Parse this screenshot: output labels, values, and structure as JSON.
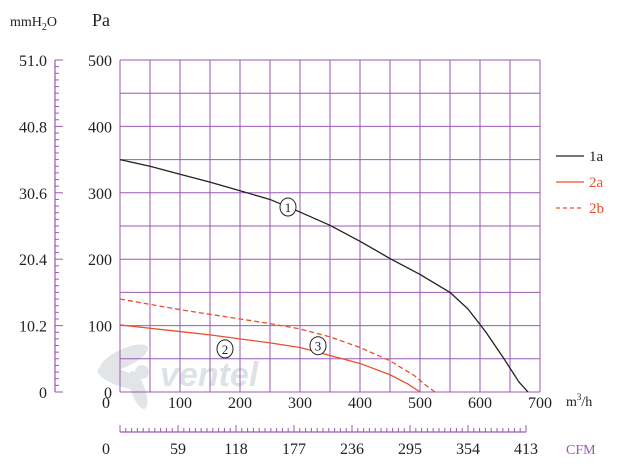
{
  "chart_data": {
    "type": "line",
    "units": {
      "left_outer": "mmH2O",
      "left_inner": "Pa",
      "bottom_flow": "m³/h",
      "bottom_cfm": "CFM"
    },
    "y_pa": {
      "range": [
        0,
        500
      ],
      "ticks": [
        "0",
        "100",
        "200",
        "300",
        "400",
        "500"
      ]
    },
    "y_mmh2o": {
      "range": [
        0,
        51.0
      ],
      "ticks": [
        "0",
        "10.2",
        "20.4",
        "30.6",
        "40.8",
        "51.0"
      ]
    },
    "x_m3h": {
      "range": [
        0,
        700
      ],
      "ticks": [
        "0",
        "100",
        "200",
        "300",
        "400",
        "500",
        "600",
        "700"
      ]
    },
    "x_cfm": {
      "range": [
        0,
        413
      ],
      "ticks": [
        "0",
        "59",
        "118",
        "177",
        "236",
        "295",
        "354",
        "413"
      ]
    },
    "grid": true,
    "legend_position": "right",
    "series": [
      {
        "name": "1a",
        "marker": "1",
        "color": "#222222",
        "dash": "solid",
        "points": [
          [
            0,
            350
          ],
          [
            50,
            340
          ],
          [
            100,
            328
          ],
          [
            150,
            316
          ],
          [
            200,
            303
          ],
          [
            250,
            290
          ],
          [
            300,
            271
          ],
          [
            350,
            251
          ],
          [
            400,
            227
          ],
          [
            450,
            201
          ],
          [
            500,
            177
          ],
          [
            550,
            150
          ],
          [
            580,
            125
          ],
          [
            610,
            90
          ],
          [
            640,
            50
          ],
          [
            665,
            15
          ],
          [
            680,
            0
          ]
        ]
      },
      {
        "name": "2a",
        "marker": "2",
        "color": "#e8502a",
        "dash": "solid",
        "points": [
          [
            0,
            101
          ],
          [
            50,
            96
          ],
          [
            100,
            91
          ],
          [
            150,
            86
          ],
          [
            200,
            80
          ],
          [
            250,
            74
          ],
          [
            300,
            67
          ],
          [
            350,
            55
          ],
          [
            400,
            43
          ],
          [
            450,
            26
          ],
          [
            480,
            12
          ],
          [
            500,
            0
          ]
        ]
      },
      {
        "name": "2b",
        "marker": "3",
        "color": "#e8502a",
        "dash": "dashed",
        "points": [
          [
            0,
            140
          ],
          [
            50,
            132
          ],
          [
            100,
            124
          ],
          [
            150,
            117
          ],
          [
            200,
            110
          ],
          [
            250,
            103
          ],
          [
            300,
            95
          ],
          [
            350,
            83
          ],
          [
            400,
            67
          ],
          [
            450,
            47
          ],
          [
            490,
            25
          ],
          [
            510,
            10
          ],
          [
            525,
            0
          ]
        ]
      }
    ]
  },
  "watermark": "ventel"
}
